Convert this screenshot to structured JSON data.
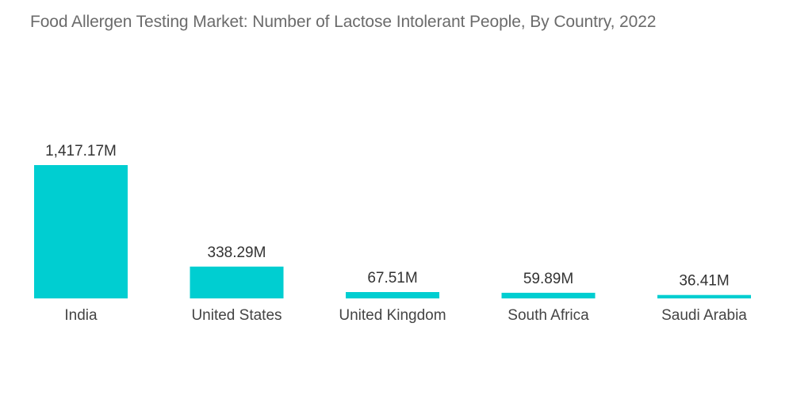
{
  "chart_data": {
    "type": "bar",
    "title": "Food Allergen Testing Market: Number of Lactose Intolerant People, By Country, 2022",
    "categories": [
      "India",
      "United States",
      "United Kingdom",
      "South Africa",
      "Saudi Arabia"
    ],
    "values": [
      1417.17,
      338.29,
      67.51,
      59.89,
      36.41
    ],
    "data_labels": [
      "1,417.17M",
      "338.29M",
      "67.51M",
      "59.89M",
      "36.41M"
    ],
    "unit": "M",
    "xlabel": "",
    "ylabel": "",
    "ylim": [
      0,
      1417.17
    ],
    "grid": false,
    "legend": "none",
    "colors": {
      "bar": "#00CED1"
    }
  }
}
